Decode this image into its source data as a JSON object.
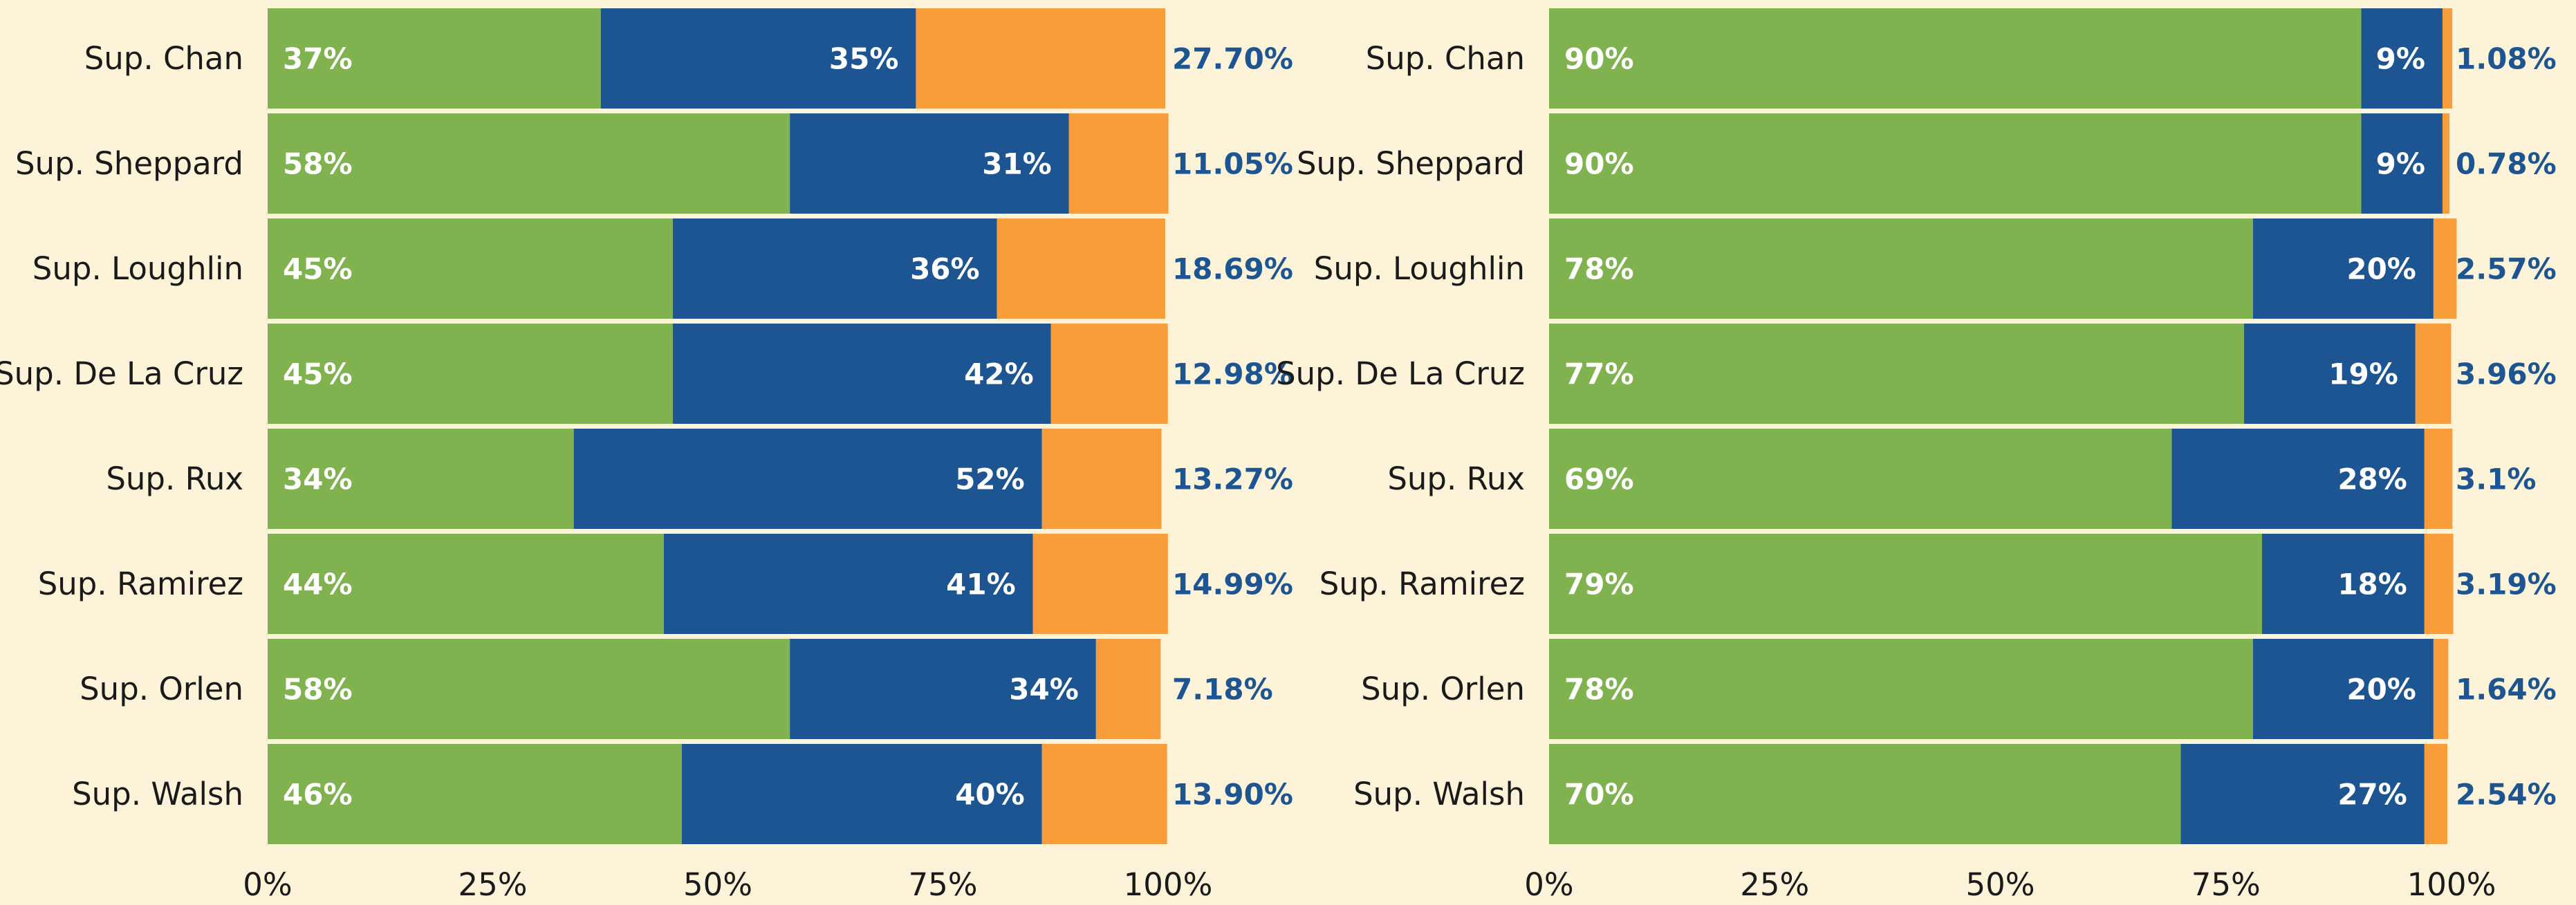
{
  "chart_data": [
    {
      "type": "stacked_bar_horizontal",
      "categories": [
        "Sup. Chan",
        "Sup. Sheppard",
        "Sup. Loughlin",
        "Sup. De La Cruz",
        "Sup. Rux",
        "Sup. Ramirez",
        "Sup. Orlen",
        "Sup. Walsh"
      ],
      "series": [
        {
          "color": "#80b34f",
          "values": [
            37,
            58,
            45,
            45,
            34,
            44,
            58,
            46
          ],
          "value_labels": [
            "37%",
            "58%",
            "45%",
            "45%",
            "34%",
            "44%",
            "58%",
            "46%"
          ]
        },
        {
          "color": "#1c5592",
          "values": [
            35,
            31,
            36,
            42,
            52,
            41,
            34,
            40
          ],
          "value_labels": [
            "35%",
            "31%",
            "36%",
            "42%",
            "52%",
            "41%",
            "34%",
            "40%"
          ]
        },
        {
          "color": "#f99c3b",
          "values": [
            27.7,
            11.05,
            18.69,
            12.98,
            13.27,
            14.99,
            7.18,
            13.9
          ],
          "value_labels": [
            "27.70%",
            "11.05%",
            "18.69%",
            "12.98%",
            "13.27%",
            "14.99%",
            "7.18%",
            "13.90%"
          ]
        }
      ],
      "xlim": [
        0,
        100
      ],
      "xticks": [
        {
          "value": 0,
          "label": "0%"
        },
        {
          "value": 25,
          "label": "25%"
        },
        {
          "value": 50,
          "label": "50%"
        },
        {
          "value": 75,
          "label": "75%"
        },
        {
          "value": 100,
          "label": "100%"
        }
      ]
    },
    {
      "type": "stacked_bar_horizontal",
      "categories": [
        "Sup. Chan",
        "Sup. Sheppard",
        "Sup. Loughlin",
        "Sup. De La Cruz",
        "Sup. Rux",
        "Sup. Ramirez",
        "Sup. Orlen",
        "Sup. Walsh"
      ],
      "series": [
        {
          "color": "#80b34f",
          "values": [
            90,
            90,
            78,
            77,
            69,
            79,
            78,
            70
          ],
          "value_labels": [
            "90%",
            "90%",
            "78%",
            "77%",
            "69%",
            "79%",
            "78%",
            "70%"
          ]
        },
        {
          "color": "#1c5592",
          "values": [
            9,
            9,
            20,
            19,
            28,
            18,
            20,
            27
          ],
          "value_labels": [
            "9%",
            "9%",
            "20%",
            "19%",
            "28%",
            "18%",
            "20%",
            "27%"
          ]
        },
        {
          "color": "#f99c3b",
          "values": [
            1.08,
            0.78,
            2.57,
            3.96,
            3.1,
            3.19,
            1.64,
            2.54
          ],
          "value_labels": [
            "1.08%",
            "0.78%",
            "2.57%",
            "3.96%",
            "3.1%",
            "3.19%",
            "1.64%",
            "2.54%"
          ]
        }
      ],
      "xlim": [
        0,
        100
      ],
      "xticks": [
        {
          "value": 0,
          "label": "0%"
        },
        {
          "value": 25,
          "label": "25%"
        },
        {
          "value": 50,
          "label": "50%"
        },
        {
          "value": 75,
          "label": "75%"
        },
        {
          "value": 100,
          "label": "100%"
        }
      ]
    }
  ]
}
